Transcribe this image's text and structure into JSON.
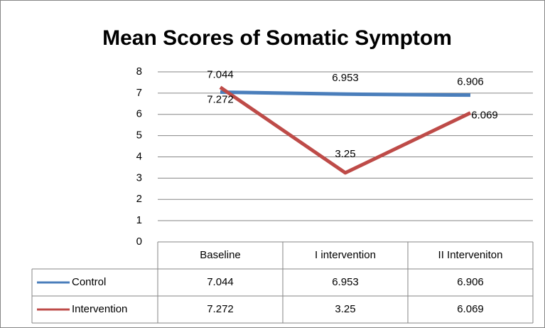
{
  "chart_data": {
    "type": "line",
    "title": "Mean Scores of Somatic Symptom",
    "categories": [
      "Baseline",
      "I intervention",
      "II Interveniton"
    ],
    "series": [
      {
        "name": "Control",
        "color": "#4a7ebb",
        "values": [
          7.044,
          6.953,
          6.906
        ]
      },
      {
        "name": "Intervention",
        "color": "#be4b48",
        "values": [
          7.272,
          3.25,
          6.069
        ]
      }
    ],
    "ylim": [
      0,
      8
    ],
    "yticks": [
      0,
      1,
      2,
      3,
      4,
      5,
      6,
      7,
      8
    ],
    "grid": true,
    "data_table": true
  }
}
